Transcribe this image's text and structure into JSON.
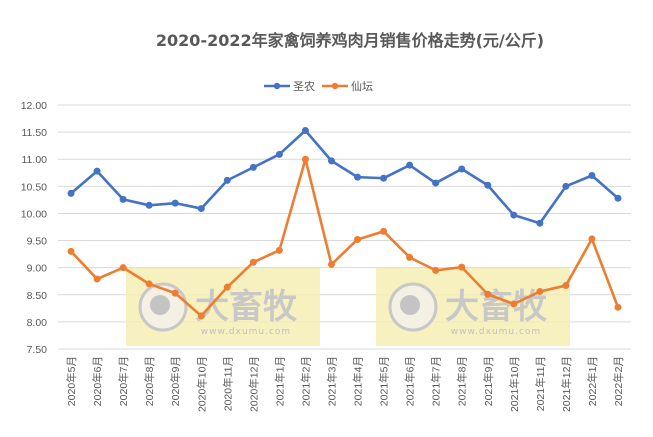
{
  "chart_data": {
    "type": "line",
    "title": "2020-2022年家禽饲养鸡肉月销售价格走势(元/公斤)",
    "xlabel": "",
    "ylabel": "",
    "ylim": [
      7.5,
      12.0
    ],
    "ytick_step": 0.5,
    "grid": true,
    "legend_position": "top",
    "categories": [
      "2020年5月",
      "2020年6月",
      "2020年7月",
      "2020年8月",
      "2020年9月",
      "2020年10月",
      "2020年11月",
      "2020年12月",
      "2021年1月",
      "2021年2月",
      "2021年3月",
      "2021年4月",
      "2021年5月",
      "2021年6月",
      "2021年7月",
      "2021年8月",
      "2021年9月",
      "2021年10月",
      "2021年11月",
      "2021年12月",
      "2022年1月",
      "2022年2月"
    ],
    "series": [
      {
        "name": "圣农",
        "color": "#4472C4",
        "values": [
          10.37,
          10.78,
          10.26,
          10.15,
          10.19,
          10.09,
          10.61,
          10.85,
          11.09,
          11.53,
          10.97,
          10.67,
          10.65,
          10.89,
          10.56,
          10.82,
          10.52,
          9.97,
          9.82,
          10.5,
          10.7,
          10.28
        ]
      },
      {
        "name": "仙坛",
        "color": "#ED7D31",
        "values": [
          9.3,
          8.79,
          9.0,
          8.7,
          8.53,
          8.11,
          8.64,
          9.1,
          9.32,
          11.0,
          9.06,
          9.52,
          9.67,
          9.19,
          8.95,
          9.01,
          8.51,
          8.33,
          8.56,
          8.67,
          9.53,
          8.27
        ]
      }
    ]
  },
  "watermark": {
    "brand": "大畜牧",
    "url": "www.dxumu.com"
  }
}
